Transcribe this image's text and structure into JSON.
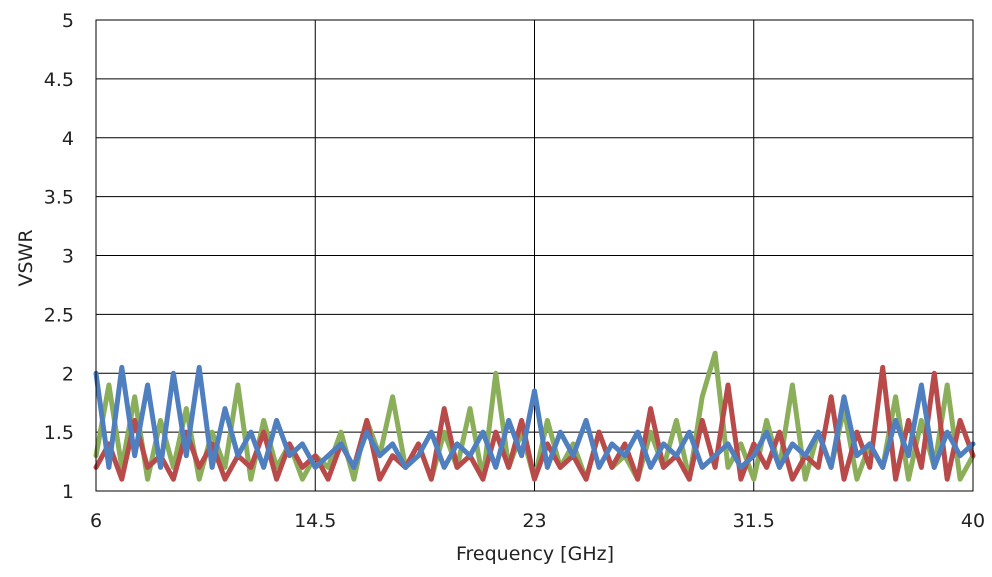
{
  "chart_data": {
    "type": "line",
    "title": "",
    "xlabel": "Frequency [GHz]",
    "ylabel": "VSWR",
    "xlim": [
      6,
      40
    ],
    "ylim": [
      1,
      5
    ],
    "x_ticks": [
      "6",
      "14.5",
      "23",
      "31.5",
      "40"
    ],
    "y_ticks": [
      "5",
      "4.5",
      "4",
      "3.5",
      "3",
      "2.5",
      "2",
      "1.5",
      "1"
    ],
    "grid": true,
    "legend": "none",
    "series": [
      {
        "color": "#8BAE5A",
        "x": [
          6.0,
          6.5,
          7.0,
          7.5,
          8.0,
          8.5,
          9.0,
          9.5,
          10.0,
          10.5,
          11.0,
          11.5,
          12.0,
          12.5,
          13.0,
          13.5,
          14.0,
          14.5,
          15.0,
          15.5,
          16.0,
          16.5,
          17.0,
          17.5,
          18.0,
          18.5,
          19.0,
          19.5,
          20.0,
          20.5,
          21.0,
          21.5,
          22.0,
          22.5,
          23.0,
          23.5,
          24.0,
          24.5,
          25.0,
          25.5,
          26.0,
          26.5,
          27.0,
          27.5,
          28.0,
          28.5,
          29.0,
          29.5,
          30.0,
          30.5,
          31.0,
          31.5,
          32.0,
          32.5,
          33.0,
          33.5,
          34.0,
          34.5,
          35.0,
          35.5,
          36.0,
          36.5,
          37.0,
          37.5,
          38.0,
          38.5,
          39.0,
          39.5,
          40.0
        ],
        "y": [
          1.3,
          1.9,
          1.2,
          1.8,
          1.1,
          1.6,
          1.2,
          1.7,
          1.1,
          1.5,
          1.2,
          1.9,
          1.1,
          1.6,
          1.2,
          1.4,
          1.1,
          1.3,
          1.2,
          1.5,
          1.1,
          1.6,
          1.3,
          1.8,
          1.2,
          1.4,
          1.1,
          1.5,
          1.2,
          1.7,
          1.1,
          2.0,
          1.2,
          1.5,
          1.1,
          1.6,
          1.2,
          1.4,
          1.1,
          1.5,
          1.2,
          1.3,
          1.1,
          1.5,
          1.2,
          1.6,
          1.1,
          1.8,
          2.17,
          1.2,
          1.4,
          1.1,
          1.6,
          1.2,
          1.9,
          1.1,
          1.5,
          1.2,
          1.7,
          1.1,
          1.4,
          1.2,
          1.8,
          1.1,
          1.6,
          1.2,
          1.9,
          1.1,
          1.3
        ]
      },
      {
        "color": "#B84A4A",
        "x": [
          6.0,
          6.5,
          7.0,
          7.5,
          8.0,
          8.5,
          9.0,
          9.5,
          10.0,
          10.5,
          11.0,
          11.5,
          12.0,
          12.5,
          13.0,
          13.5,
          14.0,
          14.5,
          15.0,
          15.5,
          16.0,
          16.5,
          17.0,
          17.5,
          18.0,
          18.5,
          19.0,
          19.5,
          20.0,
          20.5,
          21.0,
          21.5,
          22.0,
          22.5,
          23.0,
          23.5,
          24.0,
          24.5,
          25.0,
          25.5,
          26.0,
          26.5,
          27.0,
          27.5,
          28.0,
          28.5,
          29.0,
          29.5,
          30.0,
          30.5,
          31.0,
          31.5,
          32.0,
          32.5,
          33.0,
          33.5,
          34.0,
          34.5,
          35.0,
          35.5,
          36.0,
          36.5,
          37.0,
          37.5,
          38.0,
          38.5,
          39.0,
          39.5,
          40.0
        ],
        "y": [
          1.2,
          1.4,
          1.1,
          1.6,
          1.2,
          1.3,
          1.1,
          1.5,
          1.2,
          1.4,
          1.1,
          1.3,
          1.2,
          1.5,
          1.1,
          1.4,
          1.2,
          1.3,
          1.1,
          1.4,
          1.2,
          1.6,
          1.1,
          1.3,
          1.2,
          1.4,
          1.1,
          1.7,
          1.2,
          1.3,
          1.1,
          1.5,
          1.2,
          1.6,
          1.1,
          1.4,
          1.2,
          1.3,
          1.1,
          1.5,
          1.2,
          1.4,
          1.1,
          1.7,
          1.2,
          1.3,
          1.1,
          1.6,
          1.2,
          1.9,
          1.1,
          1.4,
          1.2,
          1.5,
          1.1,
          1.3,
          1.2,
          1.8,
          1.1,
          1.5,
          1.2,
          2.05,
          1.1,
          1.6,
          1.2,
          2.0,
          1.1,
          1.6,
          1.3
        ]
      },
      {
        "color": "#4F7FBF",
        "x": [
          6.0,
          6.5,
          7.0,
          7.5,
          8.0,
          8.5,
          9.0,
          9.5,
          10.0,
          10.5,
          11.0,
          11.5,
          12.0,
          12.5,
          13.0,
          13.5,
          14.0,
          14.5,
          15.0,
          15.5,
          16.0,
          16.5,
          17.0,
          17.5,
          18.0,
          18.5,
          19.0,
          19.5,
          20.0,
          20.5,
          21.0,
          21.5,
          22.0,
          22.5,
          23.0,
          23.5,
          24.0,
          24.5,
          25.0,
          25.5,
          26.0,
          26.5,
          27.0,
          27.5,
          28.0,
          28.5,
          29.0,
          29.5,
          30.0,
          30.5,
          31.0,
          31.5,
          32.0,
          32.5,
          33.0,
          33.5,
          34.0,
          34.5,
          35.0,
          35.5,
          36.0,
          36.5,
          37.0,
          37.5,
          38.0,
          38.5,
          39.0,
          39.5,
          40.0
        ],
        "y": [
          2.0,
          1.2,
          2.05,
          1.3,
          1.9,
          1.2,
          2.0,
          1.3,
          2.05,
          1.2,
          1.7,
          1.3,
          1.5,
          1.2,
          1.6,
          1.3,
          1.4,
          1.2,
          1.3,
          1.4,
          1.2,
          1.5,
          1.3,
          1.4,
          1.2,
          1.3,
          1.5,
          1.2,
          1.4,
          1.3,
          1.5,
          1.2,
          1.6,
          1.3,
          1.85,
          1.2,
          1.5,
          1.3,
          1.6,
          1.2,
          1.4,
          1.3,
          1.5,
          1.2,
          1.4,
          1.3,
          1.5,
          1.2,
          1.3,
          1.4,
          1.2,
          1.3,
          1.5,
          1.2,
          1.4,
          1.3,
          1.5,
          1.2,
          1.8,
          1.3,
          1.4,
          1.2,
          1.6,
          1.3,
          1.9,
          1.2,
          1.5,
          1.3,
          1.4
        ]
      }
    ]
  }
}
